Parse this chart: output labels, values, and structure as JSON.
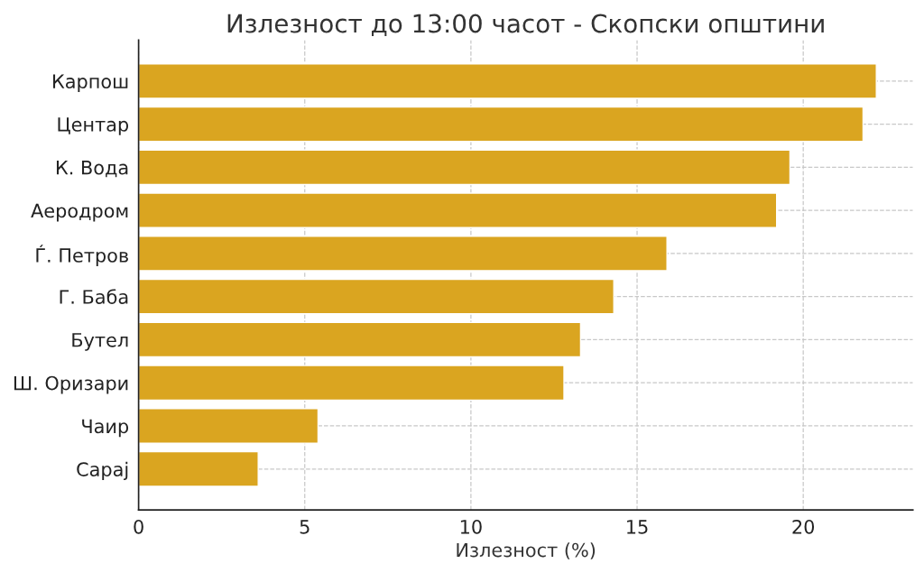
{
  "chart_data": {
    "type": "bar",
    "orientation": "horizontal",
    "title": "Излезност до 13:00 часот - Скопски општини",
    "xlabel": "Излезност (%)",
    "categories": [
      "Карпош",
      "Центар",
      "К. Вода",
      "Аеродром",
      "Ѓ. Петров",
      "Г. Баба",
      "Бутел",
      "Ш. Оризари",
      "Чаир",
      "Сарај"
    ],
    "values": [
      22.2,
      21.8,
      19.6,
      19.2,
      15.9,
      14.3,
      13.3,
      12.8,
      5.4,
      3.6
    ],
    "color": "#daa520",
    "xlim": [
      0,
      23.3
    ],
    "xticks": [
      0,
      5,
      10,
      15,
      20
    ],
    "grid": true,
    "legend": false
  }
}
